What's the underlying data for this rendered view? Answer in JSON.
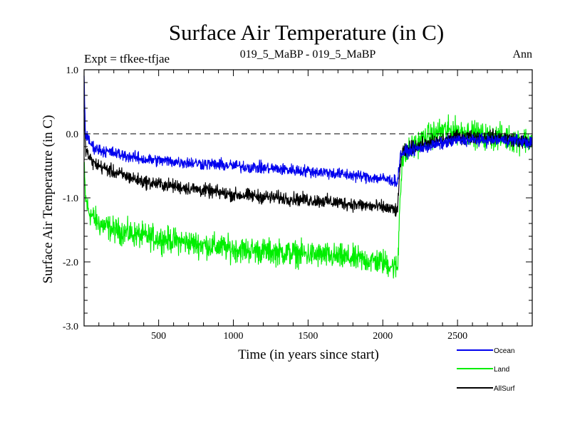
{
  "chart_data": {
    "type": "line",
    "title": "Surface Air Temperature (in C)",
    "subtitle_left": "Expt = tfkee-tfjae",
    "subtitle_center": "019_5_MaBP - 019_5_MaBP",
    "subtitle_right": "Ann",
    "xlabel": "Time (in years since start)",
    "ylabel": "Surface Air Temperature (in C)",
    "xlim": [
      1,
      3000
    ],
    "ylim": [
      -3.0,
      1.0
    ],
    "x_ticks": [
      500,
      1000,
      1500,
      2000,
      2500
    ],
    "x_tick_labels": [
      "500",
      "1000",
      "1500",
      "2000",
      "2500"
    ],
    "y_ticks": [
      1.0,
      0.0,
      -1.0,
      -2.0,
      -3.0
    ],
    "y_tick_labels": [
      "1.0",
      "0.0",
      "-1.0",
      "-2.0",
      "-3.0"
    ],
    "reference_line": {
      "y": 0.0,
      "style": "dashed"
    },
    "grid": false,
    "legend_position": "bottom-right outside",
    "series": [
      {
        "name": "Land",
        "color": "#00ee00",
        "noise": 0.17,
        "x": [
          1,
          10,
          30,
          60,
          100,
          200,
          400,
          700,
          1000,
          1300,
          1600,
          1800,
          2000,
          2100,
          2115,
          2130,
          2200,
          2300,
          2400,
          2500,
          2600,
          2700,
          2800,
          2900,
          3000
        ],
        "values": [
          -0.5,
          -1.0,
          -1.2,
          -1.3,
          -1.4,
          -1.5,
          -1.6,
          -1.7,
          -1.8,
          -1.85,
          -1.9,
          -1.95,
          -2.0,
          -2.1,
          -1.0,
          -0.4,
          -0.2,
          -0.05,
          0.05,
          0.05,
          0.0,
          -0.05,
          -0.05,
          -0.1,
          -0.1
        ]
      },
      {
        "name": "AllSurf",
        "color": "#000000",
        "noise": 0.09,
        "x": [
          1,
          10,
          30,
          60,
          100,
          200,
          400,
          700,
          1000,
          1300,
          1600,
          1800,
          2000,
          2100,
          2115,
          2130,
          2200,
          2300,
          2400,
          2500,
          2600,
          2700,
          2800,
          2900,
          3000
        ],
        "values": [
          0.3,
          -0.2,
          -0.35,
          -0.45,
          -0.5,
          -0.6,
          -0.75,
          -0.85,
          -0.95,
          -1.0,
          -1.05,
          -1.1,
          -1.15,
          -1.2,
          -0.5,
          -0.3,
          -0.2,
          -0.15,
          -0.1,
          -0.05,
          -0.05,
          -0.05,
          -0.05,
          -0.1,
          -0.15
        ]
      },
      {
        "name": "Ocean",
        "color": "#0000ee",
        "noise": 0.08,
        "x": [
          1,
          10,
          30,
          60,
          100,
          200,
          400,
          700,
          1000,
          1300,
          1600,
          1800,
          2000,
          2100,
          2115,
          2130,
          2200,
          2300,
          2400,
          2500,
          2600,
          2700,
          2800,
          2900,
          3000
        ],
        "values": [
          0.9,
          0.0,
          -0.1,
          -0.2,
          -0.25,
          -0.3,
          -0.4,
          -0.45,
          -0.5,
          -0.55,
          -0.6,
          -0.65,
          -0.7,
          -0.75,
          -0.35,
          -0.3,
          -0.25,
          -0.2,
          -0.15,
          -0.1,
          -0.1,
          -0.1,
          -0.1,
          -0.1,
          -0.15
        ]
      }
    ],
    "legend": [
      {
        "name": "Ocean",
        "color": "#0000ee"
      },
      {
        "name": "Land",
        "color": "#00ee00"
      },
      {
        "name": "AllSurf",
        "color": "#000000"
      }
    ]
  }
}
